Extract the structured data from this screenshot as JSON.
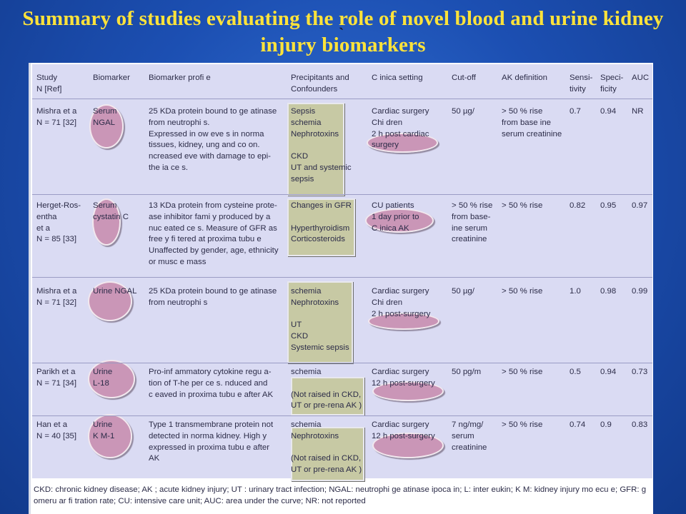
{
  "slide": {
    "title": "Summary of studies evaluating the role of novel blood and urine kidney injury biomarkers",
    "tick": "`"
  },
  "table": {
    "headers": {
      "study": "Study\nN [Ref]",
      "biomarker": "Biomarker",
      "profile": "Biomarker profi e",
      "precip": "Precipitants and\nConfounders",
      "setting": "C inica  setting",
      "cutoff": "Cut-off",
      "akdef": "AK  definition",
      "sens": "Sensi-\ntivity",
      "spec": "Speci-\nficity",
      "auc": "AUC"
    },
    "rows": [
      {
        "study": "Mishra et a\nN = 71 [32]",
        "biomarker": "Serum\nNGAL",
        "profile": "25 KDa protein bound to ge atinase\nfrom neutrophi s.\nExpressed in  ow  eve s in norma\ntissues, kidney,  ung and co on.\n ncreased  eve  with damage to epi-\nthe ia  ce  s.",
        "precip": "Sepsis\n schemia\nNephrotoxins\n\nCKD\nUT  and systemic\nsepsis",
        "setting": "Cardiac surgery\nChi dren\n2 h  post cardiac\nsurgery",
        "cutoff": "50 µg/",
        "akdef": "> 50 % rise\nfrom base ine\nserum creatinine",
        "sens": "0.7",
        "spec": "0.94",
        "auc": "NR"
      },
      {
        "study": "Herget-Ros-\nentha\net a\nN = 85 [33]",
        "biomarker": "Serum\ncystatin C",
        "profile": "13 KDa protein from cysteine prote-\nase inhibitor fami y produced by a\nnuc eated ce s. Measure of GFR as\nfree y fi tered at proxima  tubu e\nUnaffected by gender, age, ethnicity\nor musc e mass",
        "precip": "Changes in GFR\n\nHyperthyroidism\nCorticosteroids",
        "setting": " CU patients\n 1 day prior to\nC inica  AK",
        "cutoff": "> 50 % rise\nfrom base-\n ine serum\ncreatinine",
        "akdef": "> 50 % rise",
        "sens": "0.82",
        "spec": "0.95",
        "auc": "0.97"
      },
      {
        "study": "Mishra et a\nN = 71 [32]",
        "biomarker": "Urine NGAL",
        "profile": "25 KDa protein bound to ge atinase\nfrom neutrophi s",
        "precip": " schemia\nNephrotoxins\n\nUT\nCKD\nSystemic sepsis",
        "setting": "Cardiac surgery\nChi dren\n2 h  post-surgery",
        "cutoff": "50 µg/",
        "akdef": "> 50 % rise",
        "sens": "1.0",
        "spec": "0.98",
        "auc": "0.99"
      },
      {
        "study": "Parikh et a\nN = 71 [34]",
        "biomarker": "Urine\n L-18",
        "profile": "Pro-inf ammatory cytokine regu a-\ntion of T-he per ce s.  nduced and\nc eaved in proxima  tubu e after AK",
        "precip": " schemia\n\n(Not raised in CKD,\nUT  or pre-rena  AK )",
        "setting": "Cardiac surgery\n12 h  post-surgery",
        "cutoff": "50 pg/m",
        "akdef": "> 50 % rise",
        "sens": "0.5",
        "spec": "0.94",
        "auc": "0.73"
      },
      {
        "study": "Han et a\nN = 40 [35]",
        "biomarker": "Urine\nK M-1",
        "profile": "Type 1 transmembrane protein not\ndetected in norma  kidney. High y\nexpressed in proxima  tubu e after\nAK",
        "precip": " schemia\nNephrotoxins\n\n(Not raised in CKD,\nUT  or pre-rena  AK )",
        "setting": "Cardiac surgery\n12 h  post-surgery",
        "cutoff": "7 ng/mg/\nserum\ncreatinine",
        "akdef": "> 50 % rise",
        "sens": "0.74",
        "spec": "0.9",
        "auc": "0.83"
      }
    ],
    "footnote": "CKD: chronic kidney disease; AK ; acute kidney injury; UT : urinary tract infection; NGAL: neutrophi  ge atinase  ipoca in; L: inter eukin; K M: kidney injury mo ecu e; GFR: g omeru ar fi tration rate; CU: intensive care unit; AUC: area under the curve; NR: not reported"
  },
  "colors": {
    "title": "#ffe33a",
    "background": "#1c4fb2",
    "table": "#dadbf3",
    "highlight_box": "#c7c9a4",
    "oval": "#c47ca0"
  }
}
